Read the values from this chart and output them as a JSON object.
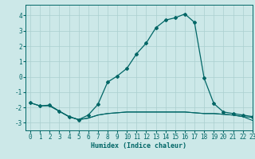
{
  "title": "",
  "xlabel": "Humidex (Indice chaleur)",
  "xlim": [
    -0.5,
    23
  ],
  "ylim": [
    -3.5,
    4.7
  ],
  "yticks": [
    -3,
    -2,
    -1,
    0,
    1,
    2,
    3,
    4
  ],
  "xticks": [
    0,
    1,
    2,
    3,
    4,
    5,
    6,
    7,
    8,
    9,
    10,
    11,
    12,
    13,
    14,
    15,
    16,
    17,
    18,
    19,
    20,
    21,
    22,
    23
  ],
  "bg_color": "#cce8e8",
  "grid_color": "#aacfcf",
  "line_color": "#006666",
  "line1_x": [
    0,
    1,
    2,
    3,
    4,
    5,
    6,
    7,
    8,
    9,
    10,
    11,
    12,
    13,
    14,
    15,
    16,
    17,
    18,
    19,
    20,
    21,
    22,
    23
  ],
  "line1_y": [
    -1.7,
    -1.9,
    -1.85,
    -2.25,
    -2.6,
    -2.8,
    -2.5,
    -1.8,
    -0.35,
    0.05,
    0.55,
    1.5,
    2.2,
    3.2,
    3.7,
    3.85,
    4.1,
    3.55,
    -0.1,
    -1.75,
    -2.3,
    -2.4,
    -2.5,
    -2.6
  ],
  "line2_x": [
    0,
    1,
    2,
    3,
    4,
    5,
    6,
    7,
    8,
    9,
    10,
    11,
    12,
    13,
    14,
    15,
    16,
    17,
    18,
    19,
    20,
    21,
    22,
    23
  ],
  "line2_y": [
    -1.7,
    -1.9,
    -1.9,
    -2.25,
    -2.6,
    -2.8,
    -2.7,
    -2.5,
    -2.4,
    -2.35,
    -2.3,
    -2.3,
    -2.3,
    -2.3,
    -2.3,
    -2.3,
    -2.3,
    -2.35,
    -2.4,
    -2.4,
    -2.45,
    -2.5,
    -2.6,
    -2.65
  ],
  "line3_x": [
    2,
    3,
    4,
    5,
    6,
    7,
    8,
    9,
    10,
    11,
    12,
    13,
    14,
    15,
    16,
    17,
    18,
    19,
    20,
    21,
    22,
    23
  ],
  "line3_y": [
    -1.9,
    -2.25,
    -2.6,
    -2.8,
    -2.7,
    -2.5,
    -2.4,
    -2.35,
    -2.3,
    -2.3,
    -2.3,
    -2.3,
    -2.3,
    -2.3,
    -2.3,
    -2.35,
    -2.4,
    -2.4,
    -2.45,
    -2.5,
    -2.6,
    -2.85
  ],
  "markersize": 2.0,
  "linewidth": 0.9,
  "tick_fontsize": 5.5,
  "xlabel_fontsize": 6.0
}
